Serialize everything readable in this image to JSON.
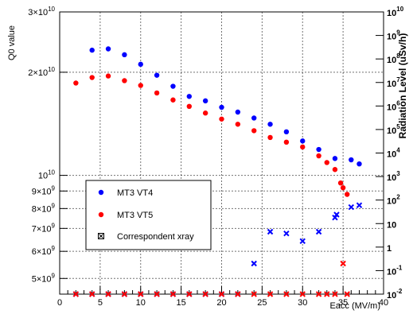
{
  "chart_data": {
    "type": "scatter",
    "xlabel": "Eacc (MV/m)",
    "ylabel": "Q0 value",
    "y2label": "Radiation Level (uSv/h)",
    "xlim": [
      0,
      40
    ],
    "ylim": [
      4500000000,
      30000000000
    ],
    "y2lim": [
      0.01,
      10000000000
    ],
    "yscale": "log",
    "y2scale": "log",
    "grid": true,
    "x_ticks": [
      "0",
      "5",
      "10",
      "15",
      "20",
      "25",
      "30",
      "35",
      "40"
    ],
    "y_ticks": [
      {
        "value": 30000000000,
        "mantissa": "3",
        "exp": "10",
        "mode": "mx"
      },
      {
        "value": 20000000000,
        "mantissa": "2",
        "exp": "10",
        "mode": "mx"
      },
      {
        "value": 10000000000,
        "mantissa": "",
        "exp": "10",
        "mode": "p"
      },
      {
        "value": 9000000000,
        "mantissa": "9",
        "exp": "9",
        "mode": "mx"
      },
      {
        "value": 8000000000,
        "mantissa": "8",
        "exp": "9",
        "mode": "mx"
      },
      {
        "value": 7000000000,
        "mantissa": "7",
        "exp": "9",
        "mode": "mx"
      },
      {
        "value": 6000000000,
        "mantissa": "6",
        "exp": "9",
        "mode": "mx"
      },
      {
        "value": 5000000000,
        "mantissa": "5",
        "exp": "9",
        "mode": "mx"
      }
    ],
    "y2_ticks": [
      {
        "value": 10000000000,
        "base": "10",
        "exp": "10"
      },
      {
        "value": 1000000000,
        "base": "10",
        "exp": "9"
      },
      {
        "value": 100000000,
        "base": "10",
        "exp": "8"
      },
      {
        "value": 10000000,
        "base": "10",
        "exp": "7"
      },
      {
        "value": 1000000,
        "base": "10",
        "exp": "6"
      },
      {
        "value": 100000,
        "base": "10",
        "exp": "5"
      },
      {
        "value": 10000,
        "base": "10",
        "exp": "4"
      },
      {
        "value": 1000,
        "base": "10",
        "exp": "3"
      },
      {
        "value": 100,
        "base": "10",
        "exp": "2"
      },
      {
        "value": 10,
        "base": "10",
        "exp": ""
      },
      {
        "value": 1,
        "base": "1",
        "exp": ""
      },
      {
        "value": 0.1,
        "base": "10",
        "exp": "-1"
      },
      {
        "value": 0.01,
        "base": "10",
        "exp": "-2"
      }
    ],
    "legend": {
      "position": "left-center",
      "entries": [
        {
          "label": "MT3 VT4",
          "marker": "dot",
          "color": "#0000ff"
        },
        {
          "label": "MT3 VT5",
          "marker": "dot",
          "color": "#ff0000"
        },
        {
          "label": "Correspondent xray",
          "marker": "x",
          "color": "#000000"
        }
      ]
    },
    "series": [
      {
        "name": "MT3 VT4",
        "marker": "dot",
        "axis": "left",
        "color": "#0000ff",
        "points": [
          [
            4,
            23200000000
          ],
          [
            6,
            23400000000
          ],
          [
            8,
            22500000000
          ],
          [
            10,
            21100000000
          ],
          [
            12,
            19600000000
          ],
          [
            14,
            18200000000
          ],
          [
            16,
            17000000000
          ],
          [
            18,
            16500000000
          ],
          [
            20,
            15800000000
          ],
          [
            22,
            15300000000
          ],
          [
            24,
            14700000000
          ],
          [
            26,
            14100000000
          ],
          [
            28,
            13400000000
          ],
          [
            30,
            12600000000
          ],
          [
            32,
            11900000000
          ],
          [
            34,
            11200000000
          ],
          [
            36,
            11100000000
          ],
          [
            37,
            10800000000
          ]
        ]
      },
      {
        "name": "MT3 VT5",
        "marker": "dot",
        "axis": "left",
        "color": "#ff0000",
        "points": [
          [
            2,
            18600000000
          ],
          [
            4,
            19300000000
          ],
          [
            6,
            19500000000
          ],
          [
            8,
            18900000000
          ],
          [
            10,
            18300000000
          ],
          [
            12,
            17400000000
          ],
          [
            14,
            16600000000
          ],
          [
            16,
            15900000000
          ],
          [
            18,
            15200000000
          ],
          [
            20,
            14600000000
          ],
          [
            22,
            14100000000
          ],
          [
            24,
            13500000000
          ],
          [
            26,
            12900000000
          ],
          [
            28,
            12500000000
          ],
          [
            30,
            12100000000
          ],
          [
            32,
            11400000000
          ],
          [
            33,
            10900000000
          ],
          [
            34,
            10400000000
          ],
          [
            34.7,
            9500000000
          ],
          [
            35,
            9200000000
          ],
          [
            35.5,
            8800000000
          ]
        ]
      },
      {
        "name": "MT3 VT4",
        "marker": "x",
        "axis": "right",
        "color": "#0000ff",
        "points": [
          [
            2,
            0.01
          ],
          [
            4,
            0.01
          ],
          [
            6,
            0.01
          ],
          [
            8,
            0.01
          ],
          [
            10,
            0.01
          ],
          [
            12,
            0.01
          ],
          [
            14,
            0.01
          ],
          [
            16,
            0.01
          ],
          [
            18,
            0.01
          ],
          [
            20,
            0.01
          ],
          [
            22,
            0.01
          ],
          [
            24,
            0.2
          ],
          [
            26,
            4.5
          ],
          [
            28,
            3.8
          ],
          [
            30,
            1.8
          ],
          [
            32,
            4.5
          ],
          [
            34,
            18
          ],
          [
            34.2,
            24
          ],
          [
            36,
            50
          ],
          [
            37,
            60
          ]
        ]
      },
      {
        "name": "MT3 VT5",
        "marker": "x",
        "axis": "right",
        "color": "#ff0000",
        "points": [
          [
            2,
            0.01
          ],
          [
            4,
            0.01
          ],
          [
            6,
            0.01
          ],
          [
            8,
            0.01
          ],
          [
            10,
            0.01
          ],
          [
            12,
            0.01
          ],
          [
            14,
            0.01
          ],
          [
            16,
            0.01
          ],
          [
            18,
            0.01
          ],
          [
            20,
            0.01
          ],
          [
            22,
            0.01
          ],
          [
            24,
            0.01
          ],
          [
            26,
            0.01
          ],
          [
            28,
            0.01
          ],
          [
            30,
            0.01
          ],
          [
            32,
            0.01
          ],
          [
            33,
            0.01
          ],
          [
            34,
            0.01
          ],
          [
            35,
            0.2
          ],
          [
            35.5,
            0.01
          ]
        ]
      }
    ]
  }
}
